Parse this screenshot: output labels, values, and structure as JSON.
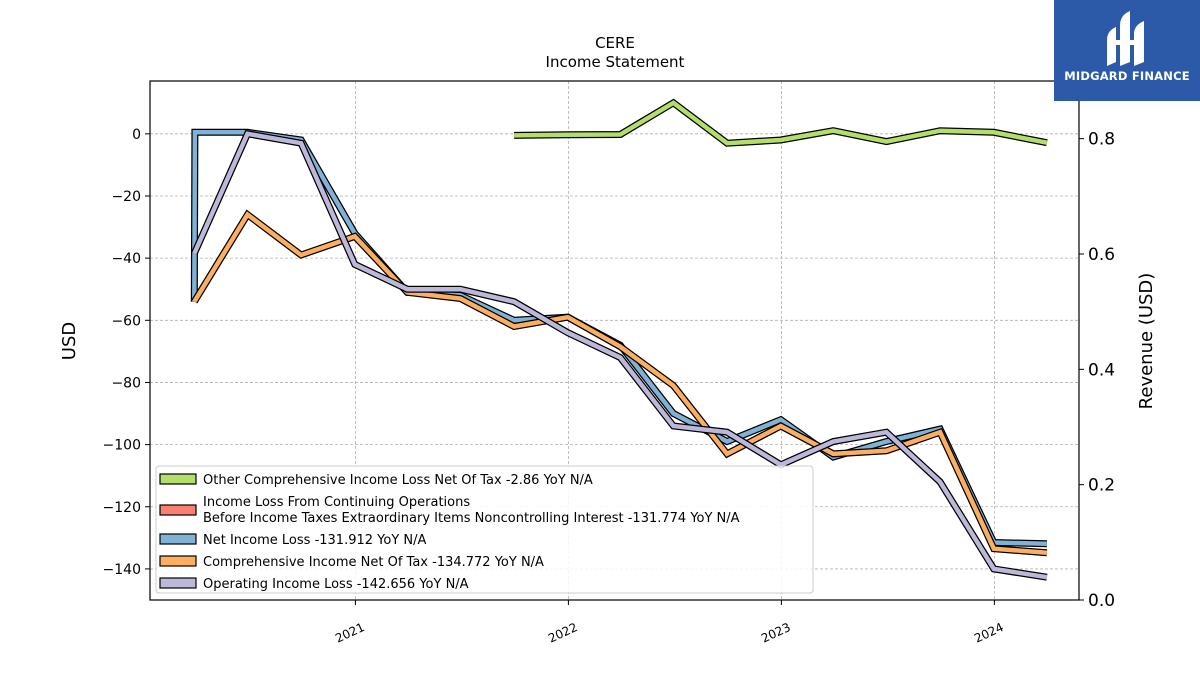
{
  "brand": {
    "name": "MIDGARD FINANCE",
    "bg_color": "#2c5aa8"
  },
  "chart_data": {
    "type": "line",
    "title": "CERE",
    "subtitle": "Income Statement",
    "ylabel": "USD",
    "ylabel_right": "Revenue (USD)",
    "ylim": [
      -150,
      17
    ],
    "ylim_right": [
      0,
      0.9
    ],
    "yticks": [
      0,
      -20,
      -40,
      -60,
      -80,
      -100,
      -120,
      -140
    ],
    "yticks_right": [
      0.0,
      0.2,
      0.4,
      0.6,
      0.8
    ],
    "xlim": [
      "2020-01-15",
      "2024-05-25"
    ],
    "xticks": [
      "2021",
      "2022",
      "2023",
      "2024"
    ],
    "grid": true,
    "legend_position": "lower-left",
    "series": [
      {
        "name": "Net Income Loss",
        "legend": "Net Income Loss  -131.912 YoY N/A",
        "color": "#7fb2d6",
        "points": [
          [
            "2020-03-31",
            -54
          ],
          [
            "2020-04-01",
            0.5
          ],
          [
            "2020-06-30",
            0.5
          ],
          [
            "2020-09-30",
            -2
          ],
          [
            "2020-12-31",
            -32
          ],
          [
            "2021-03-31",
            -51
          ],
          [
            "2021-06-30",
            -52
          ],
          [
            "2021-09-30",
            -60
          ],
          [
            "2021-12-31",
            -59
          ],
          [
            "2022-03-31",
            -68
          ],
          [
            "2022-06-30",
            -90
          ],
          [
            "2022-09-30",
            -99
          ],
          [
            "2022-12-31",
            -92
          ],
          [
            "2023-03-31",
            -104
          ],
          [
            "2023-06-30",
            -99
          ],
          [
            "2023-09-30",
            -95
          ],
          [
            "2023-12-31",
            -131.5
          ],
          [
            "2024-03-31",
            -131.912
          ]
        ]
      },
      {
        "name": "Comprehensive Income Net Of Tax",
        "legend": "Comprehensive Income Net Of Tax  -134.772 YoY N/A",
        "color": "#fdae61",
        "points": [
          [
            "2020-03-31",
            -54
          ],
          [
            "2020-06-30",
            -26
          ],
          [
            "2020-09-30",
            -39
          ],
          [
            "2020-12-31",
            -33
          ],
          [
            "2021-03-31",
            -51
          ],
          [
            "2021-06-30",
            -53
          ],
          [
            "2021-09-30",
            -62
          ],
          [
            "2021-12-31",
            -59
          ],
          [
            "2022-03-31",
            -68.5
          ],
          [
            "2022-06-30",
            -81
          ],
          [
            "2022-09-30",
            -103
          ],
          [
            "2022-12-31",
            -94
          ],
          [
            "2023-03-31",
            -103
          ],
          [
            "2023-06-30",
            -102
          ],
          [
            "2023-09-30",
            -96
          ],
          [
            "2023-12-31",
            -133.5
          ],
          [
            "2024-03-31",
            -134.772
          ]
        ]
      },
      {
        "name": "Operating Income Loss",
        "legend": "Operating Income Loss  -142.656 YoY N/A",
        "color": "#bcb8da",
        "points": [
          [
            "2020-03-31",
            -38.5
          ],
          [
            "2020-06-30",
            0
          ],
          [
            "2020-09-30",
            -3
          ],
          [
            "2020-12-31",
            -42
          ],
          [
            "2021-03-31",
            -50
          ],
          [
            "2021-06-30",
            -50
          ],
          [
            "2021-09-30",
            -54
          ],
          [
            "2021-12-31",
            -64
          ],
          [
            "2022-03-31",
            -72
          ],
          [
            "2022-06-30",
            -94
          ],
          [
            "2022-09-30",
            -96
          ],
          [
            "2022-12-31",
            -106.5
          ],
          [
            "2023-03-31",
            -99
          ],
          [
            "2023-06-30",
            -96
          ],
          [
            "2023-09-30",
            -112
          ],
          [
            "2023-12-31",
            -140
          ],
          [
            "2024-03-31",
            -142.656
          ]
        ]
      },
      {
        "name": "Other Comprehensive Income Loss Net Of Tax",
        "legend": "Other Comprehensive Income Loss Net Of Tax  -2.86 YoY N/A",
        "color": "#b3de69",
        "points": [
          [
            "2021-09-30",
            -0.5
          ],
          [
            "2021-12-31",
            -0.3
          ],
          [
            "2022-03-31",
            -0.2
          ],
          [
            "2022-06-30",
            10
          ],
          [
            "2022-09-30",
            -3
          ],
          [
            "2022-12-31",
            -2
          ],
          [
            "2023-03-31",
            1
          ],
          [
            "2023-06-30",
            -2.5
          ],
          [
            "2023-09-30",
            1
          ],
          [
            "2023-12-31",
            0.5
          ],
          [
            "2024-03-31",
            -2.86
          ]
        ]
      },
      {
        "name": "Income Loss From Continuing Operations Before Income Taxes Extraordinary Items Noncontrolling Interest",
        "legend": [
          "Income Loss From Continuing Operations",
          "Before Income Taxes Extraordinary Items Noncontrolling Interest  -131.774 YoY N/A"
        ],
        "color": "#fb8072",
        "points": []
      }
    ],
    "legend_order": [
      3,
      4,
      0,
      1,
      2
    ]
  }
}
